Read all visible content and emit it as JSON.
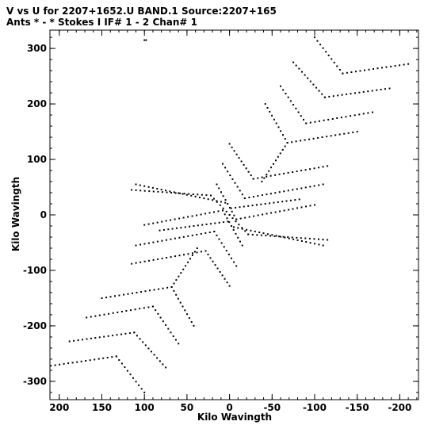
{
  "header": {
    "line1": "V vs U for 2207+1652.U BAND.1   Source:2207+165",
    "line2": "Ants * - *     Stokes I  IF# 1 - 2  Chan# 1"
  },
  "chart_data": {
    "type": "scatter",
    "title": "",
    "xlabel": "Kilo Wavingth",
    "ylabel": "Kilo Wavingth",
    "xlim": [
      211,
      -222
    ],
    "ylim": [
      -333,
      333
    ],
    "x_reversed": true,
    "grid": false,
    "xticks": [
      200,
      150,
      100,
      50,
      0,
      -50,
      -100,
      -150,
      -200
    ],
    "yticks": [
      300,
      200,
      100,
      0,
      -100,
      -200,
      -300
    ],
    "xtick_labels": [
      "200",
      "150",
      "100",
      "50",
      "0",
      "-50",
      "-100",
      "-150",
      "-200"
    ],
    "ytick_labels": [
      "300",
      "200",
      "100",
      "0",
      "-100",
      "-200",
      "-300"
    ],
    "series": [
      {
        "color": "#000000",
        "tracks": [
          {
            "from": [
              -100,
              320
            ],
            "to": [
              -133,
              255
            ]
          },
          {
            "from": [
              -133,
              255
            ],
            "to": [
              -210,
              272
            ]
          },
          {
            "from": [
              -75,
              275
            ],
            "to": [
              -112,
              212
            ]
          },
          {
            "from": [
              -112,
              212
            ],
            "to": [
              -188,
              228
            ]
          },
          {
            "from": [
              -60,
              232
            ],
            "to": [
              -90,
              165
            ]
          },
          {
            "from": [
              -90,
              165
            ],
            "to": [
              -168,
              185
            ]
          },
          {
            "from": [
              -42,
              200
            ],
            "to": [
              -68,
              130
            ]
          },
          {
            "from": [
              -68,
              130
            ],
            "to": [
              -150,
              150
            ]
          },
          {
            "from": [
              -68,
              130
            ],
            "to": [
              -38,
              60
            ]
          },
          {
            "from": [
              0,
              128
            ],
            "to": [
              -28,
              65
            ]
          },
          {
            "from": [
              -28,
              65
            ],
            "to": [
              -115,
              88
            ]
          },
          {
            "from": [
              8,
              92
            ],
            "to": [
              -18,
              30
            ]
          },
          {
            "from": [
              -18,
              30
            ],
            "to": [
              -110,
              55
            ]
          },
          {
            "from": [
              15,
              55
            ],
            "to": [
              -8,
              -8
            ]
          },
          {
            "from": [
              -8,
              -8
            ],
            "to": [
              -100,
              18
            ]
          },
          {
            "from": [
              -2,
              12
            ],
            "to": [
              -82,
              28
            ]
          },
          {
            "from": [
              0,
              0
            ],
            "to": [
              -22,
              -35
            ]
          },
          {
            "from": [
              -22,
              -35
            ],
            "to": [
              -115,
              -45
            ]
          },
          {
            "from": [
              -5,
              -22
            ],
            "to": [
              -110,
              -55
            ]
          },
          {
            "from": [
              100,
              315
            ],
            "to": [
              98,
              315
            ]
          },
          {
            "from": [
              100,
              -320
            ],
            "to": [
              133,
              -255
            ]
          },
          {
            "from": [
              133,
              -255
            ],
            "to": [
              210,
              -272
            ]
          },
          {
            "from": [
              75,
              -275
            ],
            "to": [
              112,
              -212
            ]
          },
          {
            "from": [
              112,
              -212
            ],
            "to": [
              188,
              -228
            ]
          },
          {
            "from": [
              60,
              -232
            ],
            "to": [
              90,
              -165
            ]
          },
          {
            "from": [
              90,
              -165
            ],
            "to": [
              168,
              -185
            ]
          },
          {
            "from": [
              42,
              -200
            ],
            "to": [
              68,
              -130
            ]
          },
          {
            "from": [
              68,
              -130
            ],
            "to": [
              150,
              -150
            ]
          },
          {
            "from": [
              68,
              -130
            ],
            "to": [
              38,
              -60
            ]
          },
          {
            "from": [
              0,
              -128
            ],
            "to": [
              28,
              -65
            ]
          },
          {
            "from": [
              28,
              -65
            ],
            "to": [
              115,
              -88
            ]
          },
          {
            "from": [
              -8,
              -92
            ],
            "to": [
              18,
              -30
            ]
          },
          {
            "from": [
              18,
              -30
            ],
            "to": [
              110,
              -55
            ]
          },
          {
            "from": [
              -15,
              -55
            ],
            "to": [
              8,
              8
            ]
          },
          {
            "from": [
              8,
              8
            ],
            "to": [
              100,
              -18
            ]
          },
          {
            "from": [
              2,
              -12
            ],
            "to": [
              82,
              -28
            ]
          },
          {
            "from": [
              0,
              0
            ],
            "to": [
              22,
              35
            ]
          },
          {
            "from": [
              22,
              35
            ],
            "to": [
              115,
              45
            ]
          },
          {
            "from": [
              5,
              22
            ],
            "to": [
              110,
              55
            ]
          }
        ]
      }
    ]
  }
}
